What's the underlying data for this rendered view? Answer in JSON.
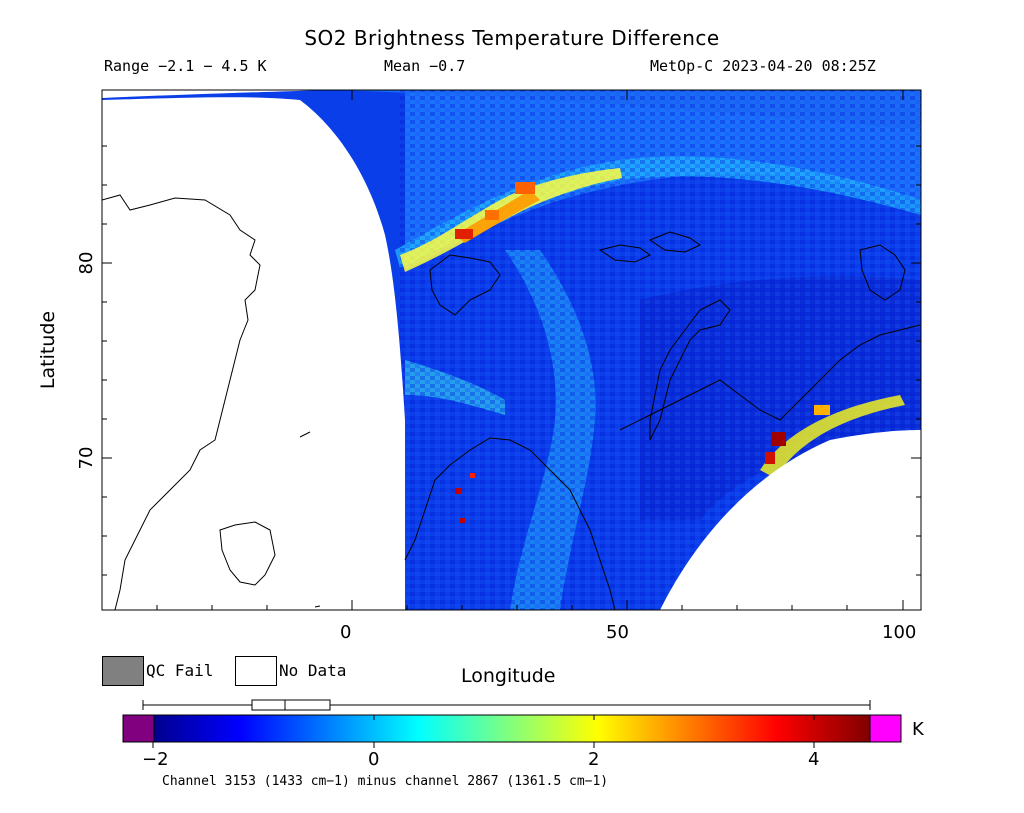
{
  "header": {
    "title": "SO2 Brightness Temperature Difference",
    "range": "Range −2.1 − 4.5 K",
    "mean": "Mean −0.7",
    "satellite_time": "MetOp-C 2023-04-20 08:25Z"
  },
  "axes": {
    "x_label": "Longitude",
    "y_label": "Latitude",
    "x_ticks": [
      "0",
      "50",
      "100"
    ],
    "y_ticks": [
      "80",
      "70"
    ]
  },
  "legend": {
    "qc_fail": {
      "label": "QC Fail",
      "color": "#808080"
    },
    "no_data": {
      "label": "No Data",
      "color": "#ffffff"
    }
  },
  "colorbar": {
    "unit": "K",
    "ticks": [
      "−2",
      "0",
      "2",
      "4"
    ],
    "under_color": "#800080",
    "over_color": "#ff00ff",
    "range": [
      -2.3,
      4.5
    ],
    "caption": "Channel 3153 (1433 cm−1) minus channel 2867 (1361.5 cm−1)"
  },
  "boxplot": {
    "min": -2.1,
    "q1": -1.1,
    "median": -0.8,
    "q3": -0.4,
    "max": 4.5
  },
  "map_data": {
    "projection": "equirectangular",
    "lon_range": [
      -45,
      103
    ],
    "lat_range": [
      62,
      89
    ],
    "colormap": "jet",
    "features": [
      {
        "name": "SO2 plume over Svalbard",
        "value_k": 3.5
      },
      {
        "name": "SO2 plume near Novaya Zemlya / Kara Sea",
        "value_k": 4.3
      }
    ]
  }
}
